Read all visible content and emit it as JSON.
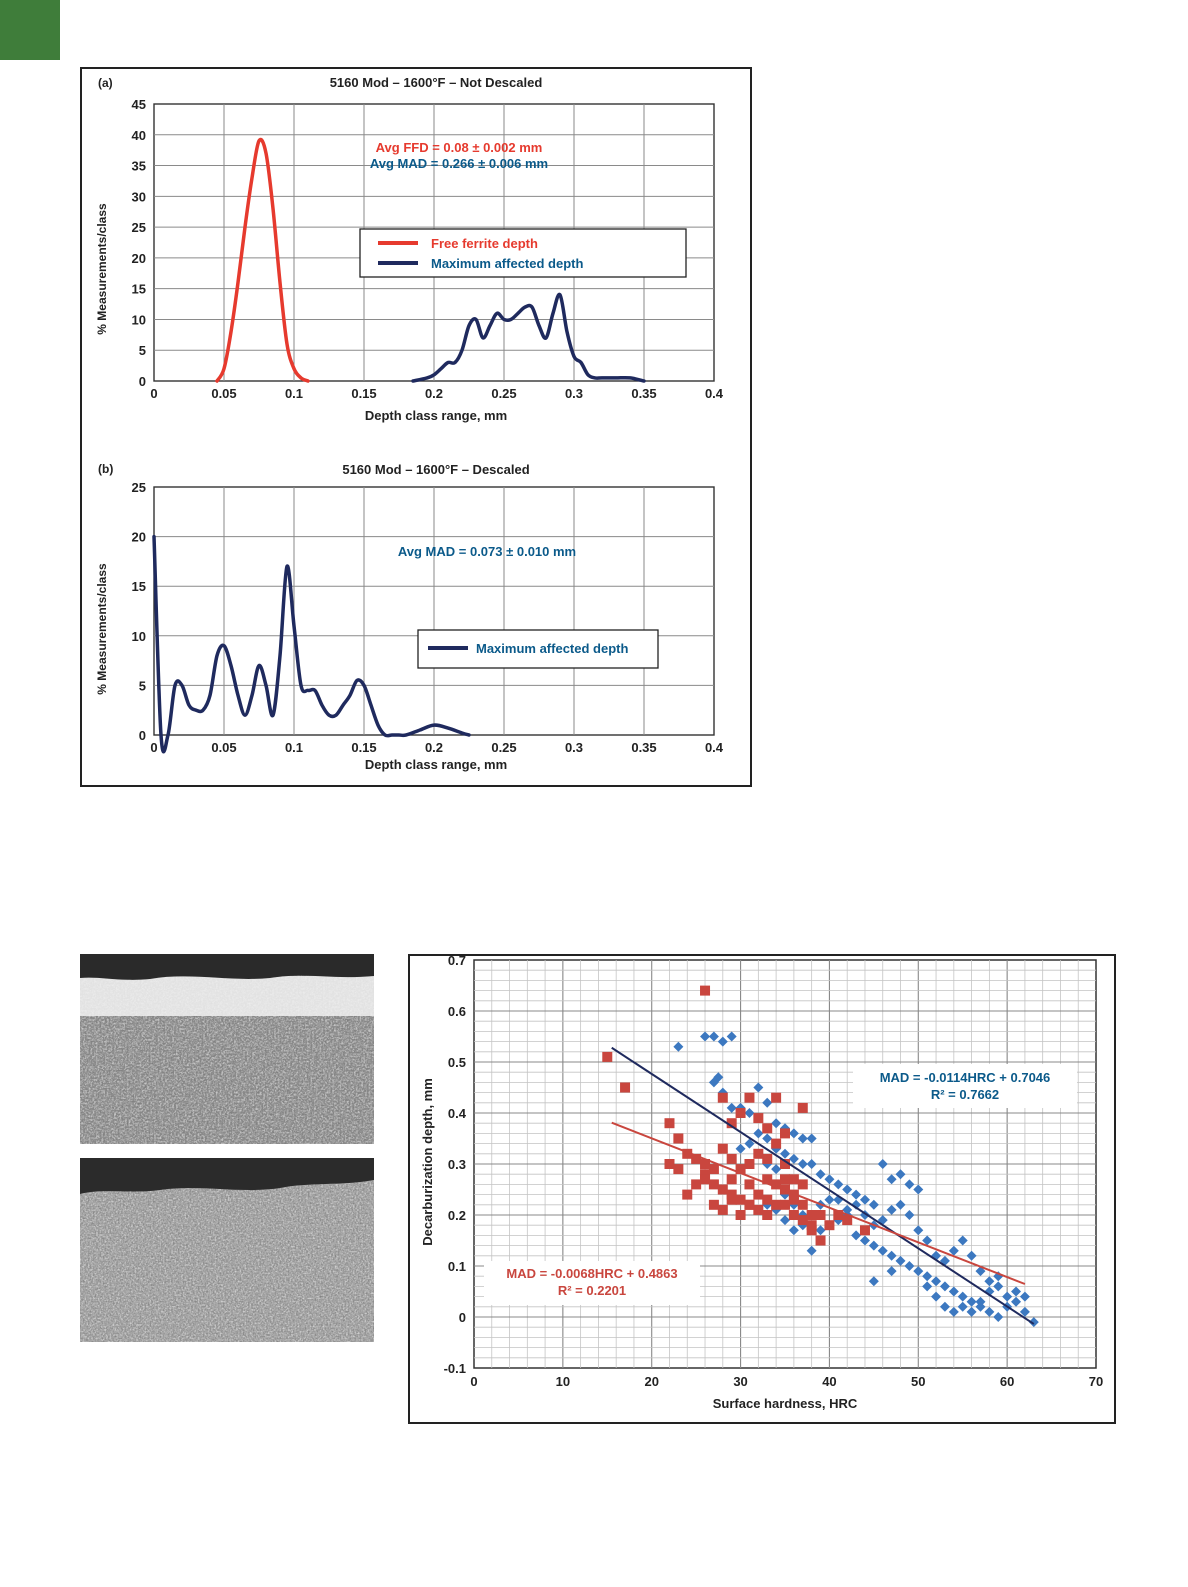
{
  "colors": {
    "accent_tab": "#3f7d3a",
    "ffd": "#e63a2e",
    "mad": "#1f2a5e",
    "mad_text": "#0b5a8a",
    "scatter_blue": "#3c78c0",
    "scatter_red": "#c9463e"
  },
  "panel_a": {
    "label": "(a)",
    "title": "5160 Mod – 1600°F – Not Descaled",
    "ylabel": "% Measurements/class",
    "xlabel": "Depth class range, mm",
    "annotation_ffd": "Avg FFD = 0.08 ± 0.002 mm",
    "annotation_mad": "Avg MAD = 0.266 ± 0.006 mm",
    "legend": [
      "Free ferrite depth",
      "Maximum affected depth"
    ]
  },
  "panel_b": {
    "label": "(b)",
    "title": "5160 Mod – 1600°F – Descaled",
    "ylabel": "% Measurements/class",
    "xlabel": "Depth class range, mm",
    "annotation_mad": "Avg MAD = 0.073 ± 0.010 mm",
    "legend": [
      "Maximum affected depth"
    ]
  },
  "scatter": {
    "xlabel": "Surface hardness, HRC",
    "ylabel": "Decarburization depth, mm",
    "eq_blue": "MAD = -0.0114HRC + 0.7046",
    "r2_blue": "R² = 0.7662",
    "eq_red": "MAD = -0.0068HRC + 0.4863",
    "r2_red": "R² = 0.2201"
  },
  "chart_data": [
    {
      "type": "line",
      "title": "5160 Mod – 1600°F – Not Descaled",
      "xlabel": "Depth class range, mm",
      "ylabel": "% Measurements/class",
      "xlim": [
        0,
        0.4
      ],
      "ylim": [
        0,
        45
      ],
      "xticks": [
        "0",
        "0.05",
        "0.1",
        "0.15",
        "0.2",
        "0.25",
        "0.3",
        "0.35",
        "0.4"
      ],
      "yticks": [
        "0",
        "5",
        "10",
        "15",
        "20",
        "25",
        "30",
        "35",
        "40",
        "45"
      ],
      "grid": true,
      "legend": "center-right",
      "series": [
        {
          "name": "Free ferrite depth",
          "color": "#e63a2e",
          "x": [
            0.045,
            0.05,
            0.055,
            0.06,
            0.065,
            0.07,
            0.075,
            0.08,
            0.085,
            0.09,
            0.095,
            0.1,
            0.105,
            0.11
          ],
          "y": [
            0,
            2,
            8,
            16,
            25,
            33,
            39,
            37,
            28,
            16,
            6,
            2,
            0.5,
            0
          ]
        },
        {
          "name": "Maximum affected depth",
          "color": "#1f2a5e",
          "x": [
            0.185,
            0.195,
            0.2,
            0.205,
            0.21,
            0.215,
            0.22,
            0.225,
            0.23,
            0.235,
            0.24,
            0.245,
            0.25,
            0.255,
            0.26,
            0.265,
            0.27,
            0.275,
            0.28,
            0.285,
            0.29,
            0.295,
            0.3,
            0.305,
            0.31,
            0.315,
            0.32,
            0.33,
            0.34,
            0.35
          ],
          "y": [
            0,
            0.5,
            1,
            2,
            3,
            3,
            5,
            9,
            10,
            7,
            9,
            11,
            10,
            10,
            11,
            12,
            12,
            9,
            7,
            11,
            14,
            8,
            4,
            3,
            1,
            0.5,
            0.5,
            0.5,
            0.5,
            0
          ]
        }
      ]
    },
    {
      "type": "line",
      "title": "5160 Mod – 1600°F – Descaled",
      "xlabel": "Depth class range, mm",
      "ylabel": "% Measurements/class",
      "xlim": [
        0,
        0.4
      ],
      "ylim": [
        0,
        25
      ],
      "xticks": [
        "0",
        "0.05",
        "0.1",
        "0.15",
        "0.2",
        "0.25",
        "0.3",
        "0.35",
        "0.4"
      ],
      "yticks": [
        "0",
        "5",
        "10",
        "15",
        "20",
        "25"
      ],
      "grid": true,
      "legend": "center-right",
      "series": [
        {
          "name": "Maximum affected depth",
          "color": "#1f2a5e",
          "x": [
            0,
            0.005,
            0.01,
            0.015,
            0.02,
            0.025,
            0.03,
            0.035,
            0.04,
            0.045,
            0.05,
            0.055,
            0.06,
            0.065,
            0.07,
            0.075,
            0.08,
            0.085,
            0.09,
            0.095,
            0.1,
            0.105,
            0.11,
            0.115,
            0.12,
            0.125,
            0.13,
            0.135,
            0.14,
            0.145,
            0.15,
            0.155,
            0.16,
            0.165,
            0.17,
            0.175,
            0.18,
            0.19,
            0.2,
            0.21,
            0.22,
            0.225
          ],
          "y": [
            20,
            0,
            0,
            5,
            5,
            3,
            2.5,
            2.5,
            4,
            8,
            9,
            7,
            4,
            2,
            4,
            7,
            5,
            2,
            8,
            17,
            11,
            5,
            4.5,
            4.5,
            3,
            2,
            2,
            3,
            4,
            5.5,
            5,
            3,
            1,
            0,
            0,
            0,
            0,
            0.5,
            1,
            0.7,
            0.2,
            0
          ]
        }
      ]
    },
    {
      "type": "scatter",
      "xlabel": "Surface hardness, HRC",
      "ylabel": "Decarburization depth, mm",
      "xlim": [
        0,
        70
      ],
      "ylim": [
        -0.1,
        0.7
      ],
      "xticks": [
        "0",
        "10",
        "20",
        "30",
        "40",
        "50",
        "60",
        "70"
      ],
      "yticks": [
        "-0.1",
        "0",
        "0.1",
        "0.2",
        "0.3",
        "0.4",
        "0.5",
        "0.6",
        "0.7"
      ],
      "grid": true,
      "series": [
        {
          "color": "#3c78c0",
          "marker": "diamond",
          "points": [
            [
              23,
              0.53
            ],
            [
              26,
              0.55
            ],
            [
              27,
              0.55
            ],
            [
              28,
              0.54
            ],
            [
              29,
              0.55
            ],
            [
              27,
              0.46
            ],
            [
              27.5,
              0.47
            ],
            [
              28,
              0.44
            ],
            [
              29,
              0.41
            ],
            [
              30,
              0.41
            ],
            [
              31,
              0.4
            ],
            [
              32,
              0.45
            ],
            [
              33,
              0.42
            ],
            [
              34,
              0.38
            ],
            [
              35,
              0.37
            ],
            [
              36,
              0.36
            ],
            [
              37,
              0.35
            ],
            [
              38,
              0.35
            ],
            [
              32,
              0.36
            ],
            [
              33,
              0.35
            ],
            [
              34,
              0.33
            ],
            [
              35,
              0.32
            ],
            [
              36,
              0.31
            ],
            [
              37,
              0.3
            ],
            [
              38,
              0.3
            ],
            [
              39,
              0.28
            ],
            [
              40,
              0.27
            ],
            [
              41,
              0.26
            ],
            [
              42,
              0.25
            ],
            [
              43,
              0.24
            ],
            [
              44,
              0.23
            ],
            [
              45,
              0.22
            ],
            [
              46,
              0.3
            ],
            [
              47,
              0.27
            ],
            [
              48,
              0.28
            ],
            [
              49,
              0.26
            ],
            [
              50,
              0.25
            ],
            [
              30,
              0.33
            ],
            [
              31,
              0.34
            ],
            [
              32,
              0.32
            ],
            [
              33,
              0.3
            ],
            [
              34,
              0.29
            ],
            [
              35,
              0.24
            ],
            [
              36,
              0.22
            ],
            [
              37,
              0.2
            ],
            [
              38,
              0.18
            ],
            [
              39,
              0.17
            ],
            [
              40,
              0.18
            ],
            [
              41,
              0.19
            ],
            [
              42,
              0.2
            ],
            [
              43,
              0.16
            ],
            [
              44,
              0.15
            ],
            [
              45,
              0.14
            ],
            [
              46,
              0.13
            ],
            [
              47,
              0.12
            ],
            [
              48,
              0.11
            ],
            [
              49,
              0.1
            ],
            [
              50,
              0.09
            ],
            [
              51,
              0.08
            ],
            [
              52,
              0.07
            ],
            [
              53,
              0.06
            ],
            [
              54,
              0.05
            ],
            [
              55,
              0.04
            ],
            [
              56,
              0.03
            ],
            [
              57,
              0.02
            ],
            [
              58,
              0.01
            ],
            [
              59,
              0.0
            ],
            [
              60,
              0.02
            ],
            [
              61,
              0.03
            ],
            [
              62,
              0.01
            ],
            [
              63,
              -0.01
            ],
            [
              53,
              0.02
            ],
            [
              54,
              0.01
            ],
            [
              55,
              0.02
            ],
            [
              56,
              0.01
            ],
            [
              57,
              0.03
            ],
            [
              58,
              0.05
            ],
            [
              59,
              0.06
            ],
            [
              60,
              0.04
            ],
            [
              52,
              0.12
            ],
            [
              53,
              0.11
            ],
            [
              54,
              0.13
            ],
            [
              55,
              0.15
            ],
            [
              56,
              0.12
            ],
            [
              50,
              0.17
            ],
            [
              51,
              0.15
            ],
            [
              49,
              0.2
            ],
            [
              48,
              0.22
            ],
            [
              47,
              0.21
            ],
            [
              46,
              0.19
            ],
            [
              45,
              0.18
            ],
            [
              44,
              0.2
            ],
            [
              43,
              0.22
            ],
            [
              42,
              0.21
            ],
            [
              41,
              0.23
            ],
            [
              38,
              0.13
            ],
            [
              39,
              0.22
            ],
            [
              40,
              0.23
            ],
            [
              36,
              0.17
            ],
            [
              37,
              0.18
            ],
            [
              35,
              0.19
            ],
            [
              34,
              0.21
            ],
            [
              33,
              0.22
            ],
            [
              45,
              0.07
            ],
            [
              47,
              0.09
            ],
            [
              51,
              0.06
            ],
            [
              52,
              0.04
            ],
            [
              57,
              0.09
            ],
            [
              58,
              0.07
            ],
            [
              59,
              0.08
            ],
            [
              61,
              0.05
            ],
            [
              62,
              0.04
            ]
          ]
        },
        {
          "color": "#c9463e",
          "marker": "square",
          "points": [
            [
              15,
              0.51
            ],
            [
              17,
              0.45
            ],
            [
              26,
              0.64
            ],
            [
              22,
              0.38
            ],
            [
              23,
              0.35
            ],
            [
              22,
              0.3
            ],
            [
              23,
              0.29
            ],
            [
              24,
              0.32
            ],
            [
              25,
              0.31
            ],
            [
              26,
              0.28
            ],
            [
              24,
              0.24
            ],
            [
              25,
              0.26
            ],
            [
              26,
              0.3
            ],
            [
              27,
              0.26
            ],
            [
              28,
              0.25
            ],
            [
              29,
              0.24
            ],
            [
              30,
              0.23
            ],
            [
              31,
              0.22
            ],
            [
              32,
              0.21
            ],
            [
              33,
              0.2
            ],
            [
              34,
              0.22
            ],
            [
              35,
              0.25
            ],
            [
              36,
              0.23
            ],
            [
              37,
              0.19
            ],
            [
              38,
              0.18
            ],
            [
              39,
              0.2
            ],
            [
              28,
              0.43
            ],
            [
              29,
              0.38
            ],
            [
              30,
              0.4
            ],
            [
              31,
              0.43
            ],
            [
              32,
              0.39
            ],
            [
              33,
              0.37
            ],
            [
              34,
              0.43
            ],
            [
              35,
              0.36
            ],
            [
              37,
              0.41
            ],
            [
              28,
              0.33
            ],
            [
              29,
              0.31
            ],
            [
              30,
              0.29
            ],
            [
              31,
              0.3
            ],
            [
              32,
              0.32
            ],
            [
              33,
              0.31
            ],
            [
              34,
              0.34
            ],
            [
              35,
              0.3
            ],
            [
              36,
              0.27
            ],
            [
              37,
              0.26
            ],
            [
              27,
              0.22
            ],
            [
              28,
              0.21
            ],
            [
              29,
              0.23
            ],
            [
              30,
              0.2
            ],
            [
              31,
              0.22
            ],
            [
              32,
              0.24
            ],
            [
              33,
              0.23
            ],
            [
              34,
              0.26
            ],
            [
              35,
              0.27
            ],
            [
              36,
              0.24
            ],
            [
              37,
              0.22
            ],
            [
              38,
              0.2
            ],
            [
              40,
              0.18
            ],
            [
              42,
              0.19
            ],
            [
              44,
              0.17
            ],
            [
              26,
              0.27
            ],
            [
              27,
              0.29
            ],
            [
              29,
              0.27
            ],
            [
              31,
              0.26
            ],
            [
              33,
              0.27
            ],
            [
              35,
              0.22
            ],
            [
              36,
              0.2
            ],
            [
              38,
              0.17
            ],
            [
              39,
              0.15
            ],
            [
              41,
              0.2
            ]
          ]
        }
      ],
      "trendlines": [
        {
          "color": "#1f2a5e",
          "equation": "MAD = -0.0114HRC + 0.7046",
          "r2": "R² = 0.7662",
          "slope": -0.0114,
          "intercept": 0.7046,
          "x_range": [
            15.5,
            63
          ]
        },
        {
          "color": "#c9463e",
          "equation": "MAD = -0.0068HRC + 0.4863",
          "r2": "R² = 0.2201",
          "slope": -0.0068,
          "intercept": 0.4863,
          "x_range": [
            15.5,
            62
          ]
        }
      ]
    }
  ]
}
